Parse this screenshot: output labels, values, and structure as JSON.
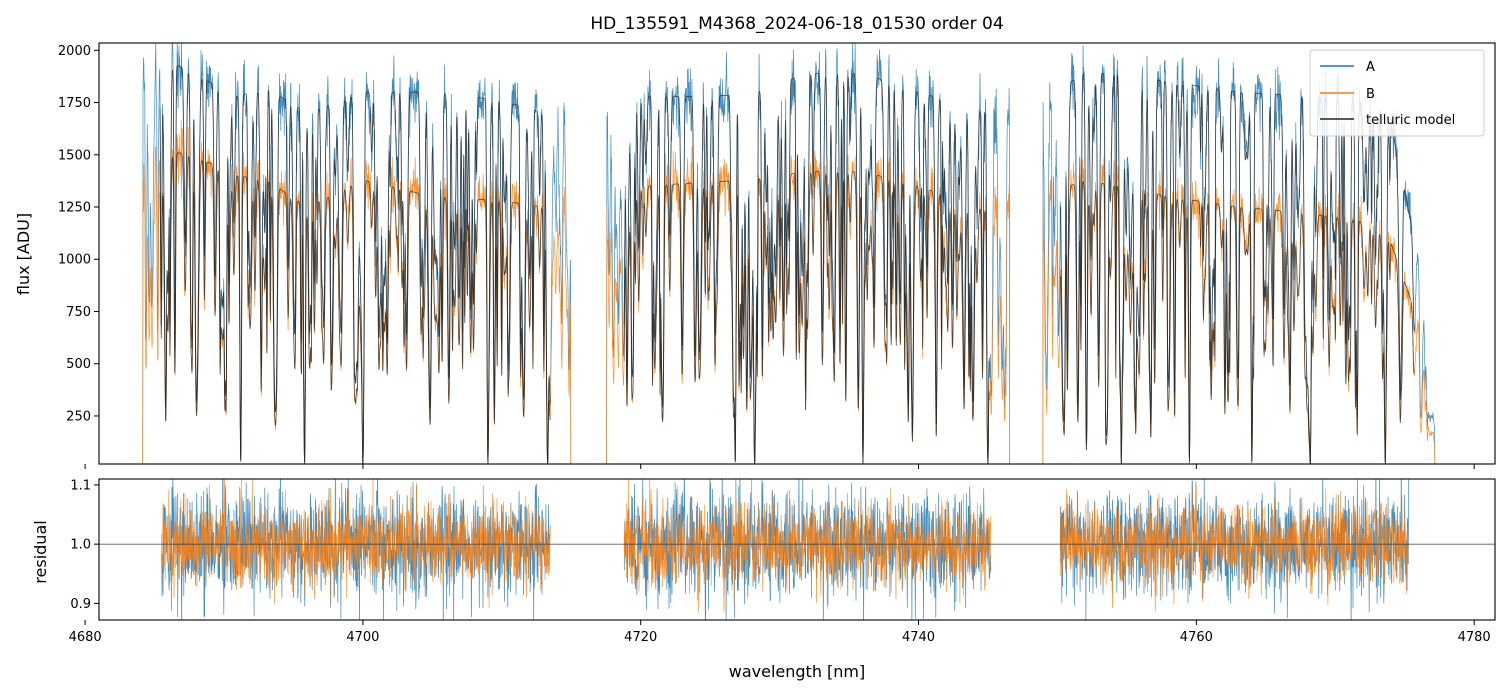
{
  "chart_data": [
    {
      "type": "line",
      "panel": "flux",
      "title": "HD_135591_M4368_2024-06-18_01530  order 04",
      "xlabel": "",
      "ylabel": "flux [ADU]",
      "xlim": [
        4681.0,
        4781.5
      ],
      "ylim": [
        20,
        2035
      ],
      "x_ticks": [
        4680,
        4700,
        4720,
        4740,
        4760,
        4780
      ],
      "y_ticks": [
        250,
        500,
        750,
        1000,
        1250,
        1500,
        1750,
        2000
      ],
      "y_tick_labels": [
        "250",
        "500",
        "750",
        "1000",
        "1250",
        "1500",
        "1750",
        "2000"
      ],
      "legend_position": "top-right",
      "grid": false,
      "segments": [
        [
          4684.1,
          4715.0
        ],
        [
          4717.5,
          4746.6
        ],
        [
          4748.9,
          4777.2
        ]
      ],
      "deep_absorption_lines": [
        4691.2,
        4695.8,
        4700.0,
        4709.0,
        4713.3,
        4726.8,
        4728.2,
        4736.0,
        4745.0,
        4754.6,
        4759.5,
        4764.0,
        4768.2,
        4773.6
      ],
      "series": [
        {
          "name": "A",
          "color": "#1f77b4",
          "continuum": [
            [
              4684.1,
              1850
            ],
            [
              4686,
              1950
            ],
            [
              4688,
              1880
            ],
            [
              4691,
              1780
            ],
            [
              4693,
              1820
            ],
            [
              4696,
              1700
            ],
            [
              4700,
              1800
            ],
            [
              4705,
              1800
            ],
            [
              4710,
              1760
            ],
            [
              4713,
              1700
            ],
            [
              4717.5,
              1650
            ],
            [
              4720,
              1780
            ],
            [
              4725,
              1780
            ],
            [
              4728,
              1790
            ],
            [
              4732,
              1890
            ],
            [
              4736,
              1890
            ],
            [
              4740,
              1800
            ],
            [
              4745,
              1700
            ],
            [
              4748.9,
              1750
            ],
            [
              4752,
              1900
            ],
            [
              4758,
              1850
            ],
            [
              4763,
              1800
            ],
            [
              4768,
              1780
            ],
            [
              4772,
              1750
            ],
            [
              4774,
              1650
            ],
            [
              4776,
              1000
            ],
            [
              4777.2,
              150
            ]
          ]
        },
        {
          "name": "B",
          "color": "#ff7f0e",
          "continuum": [
            [
              4684.1,
              1350
            ],
            [
              4686,
              1520
            ],
            [
              4688,
              1490
            ],
            [
              4691,
              1400
            ],
            [
              4693,
              1380
            ],
            [
              4696,
              1250
            ],
            [
              4700,
              1380
            ],
            [
              4705,
              1300
            ],
            [
              4710,
              1280
            ],
            [
              4713,
              1250
            ],
            [
              4717.5,
              1200
            ],
            [
              4720,
              1350
            ],
            [
              4725,
              1370
            ],
            [
              4728,
              1380
            ],
            [
              4732,
              1420
            ],
            [
              4736,
              1420
            ],
            [
              4740,
              1350
            ],
            [
              4745,
              1230
            ],
            [
              4748.9,
              1300
            ],
            [
              4752,
              1380
            ],
            [
              4758,
              1300
            ],
            [
              4763,
              1250
            ],
            [
              4768,
              1220
            ],
            [
              4772,
              1180
            ],
            [
              4774,
              1080
            ],
            [
              4776,
              700
            ],
            [
              4777.2,
              100
            ]
          ]
        },
        {
          "name": "telluric model",
          "color": "#222222"
        }
      ]
    },
    {
      "type": "line",
      "panel": "residual",
      "title": "",
      "xlabel": "wavelength [nm]",
      "ylabel": "residual",
      "xlim": [
        4681.0,
        4781.5
      ],
      "ylim": [
        0.872,
        1.11
      ],
      "x_ticks": [
        4680,
        4700,
        4720,
        4740,
        4760,
        4780
      ],
      "x_tick_labels": [
        "4680",
        "4700",
        "4720",
        "4740",
        "4760",
        "4780"
      ],
      "y_ticks": [
        0.9,
        1.0,
        1.1
      ],
      "y_tick_labels": [
        "0.9",
        "1.0",
        "1.1"
      ],
      "reference_line": 1.0,
      "segments": [
        [
          4685.5,
          4713.5
        ],
        [
          4718.8,
          4745.2
        ],
        [
          4750.2,
          4775.3
        ]
      ],
      "series": [
        {
          "name": "A",
          "color": "#1f77b4",
          "scatter": 0.045
        },
        {
          "name": "B",
          "color": "#ff7f0e",
          "scatter": 0.035
        }
      ]
    }
  ]
}
